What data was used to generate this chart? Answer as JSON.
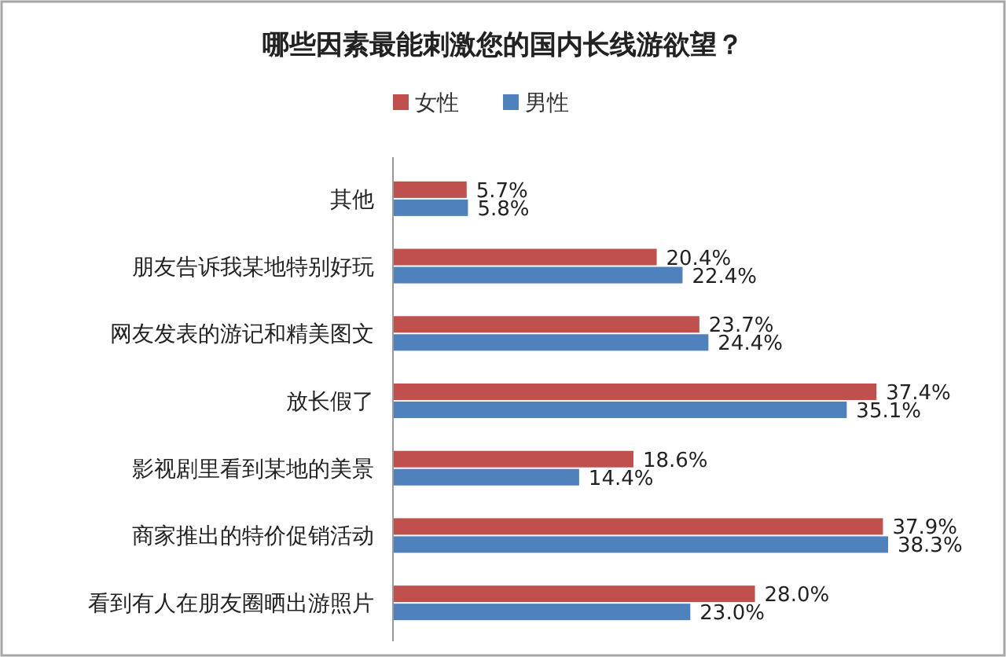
{
  "chart_data": {
    "type": "bar",
    "orientation": "horizontal",
    "title": "哪些因素最能刺激您的国内长线游欲望？",
    "categories": [
      "其他",
      "朋友告诉我某地特别好玩",
      "网友发表的游记和精美图文",
      "放长假了",
      "影视剧里看到某地的美景",
      "商家推出的特价促销活动",
      "看到有人在朋友圈晒出游照片"
    ],
    "series": [
      {
        "name": "女性",
        "color": "#c0504d",
        "values": [
          5.7,
          20.4,
          23.7,
          37.4,
          18.6,
          37.9,
          28.0
        ],
        "value_labels": [
          "5.7%",
          "20.4%",
          "23.7%",
          "37.4%",
          "18.6%",
          "37.9%",
          "28.0%"
        ]
      },
      {
        "name": "男性",
        "color": "#4f81bd",
        "values": [
          5.8,
          22.4,
          24.4,
          35.1,
          14.4,
          38.3,
          23.0
        ],
        "value_labels": [
          "5.8%",
          "22.4%",
          "24.4%",
          "35.1%",
          "14.4%",
          "38.3%",
          "23.0%"
        ]
      }
    ],
    "legend": "top",
    "grid": false
  }
}
